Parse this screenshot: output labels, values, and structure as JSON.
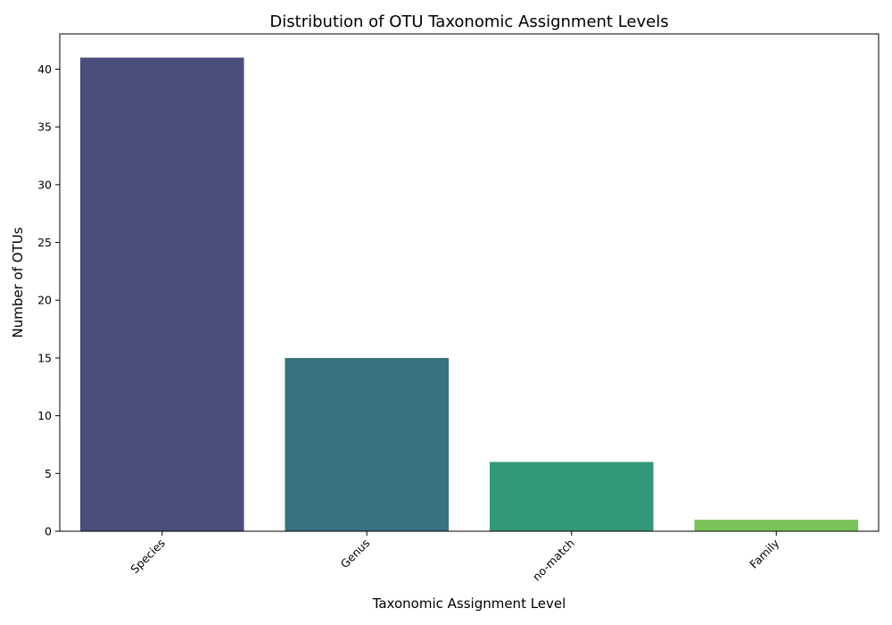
{
  "chart_data": {
    "type": "bar",
    "title": "Distribution of OTU Taxonomic Assignment Levels",
    "xlabel": "Taxonomic Assignment Level",
    "ylabel": "Number of OTUs",
    "categories": [
      "Species",
      "Genus",
      "no-match",
      "Family"
    ],
    "values": [
      41,
      15,
      6,
      1
    ],
    "colors": [
      "#4a4e7d",
      "#38737f",
      "#34997b",
      "#7ac35a"
    ],
    "ylim": [
      0,
      43.05
    ],
    "yticks": [
      0,
      5,
      10,
      15,
      20,
      25,
      30,
      35,
      40
    ],
    "grid": false,
    "legend": "none"
  }
}
